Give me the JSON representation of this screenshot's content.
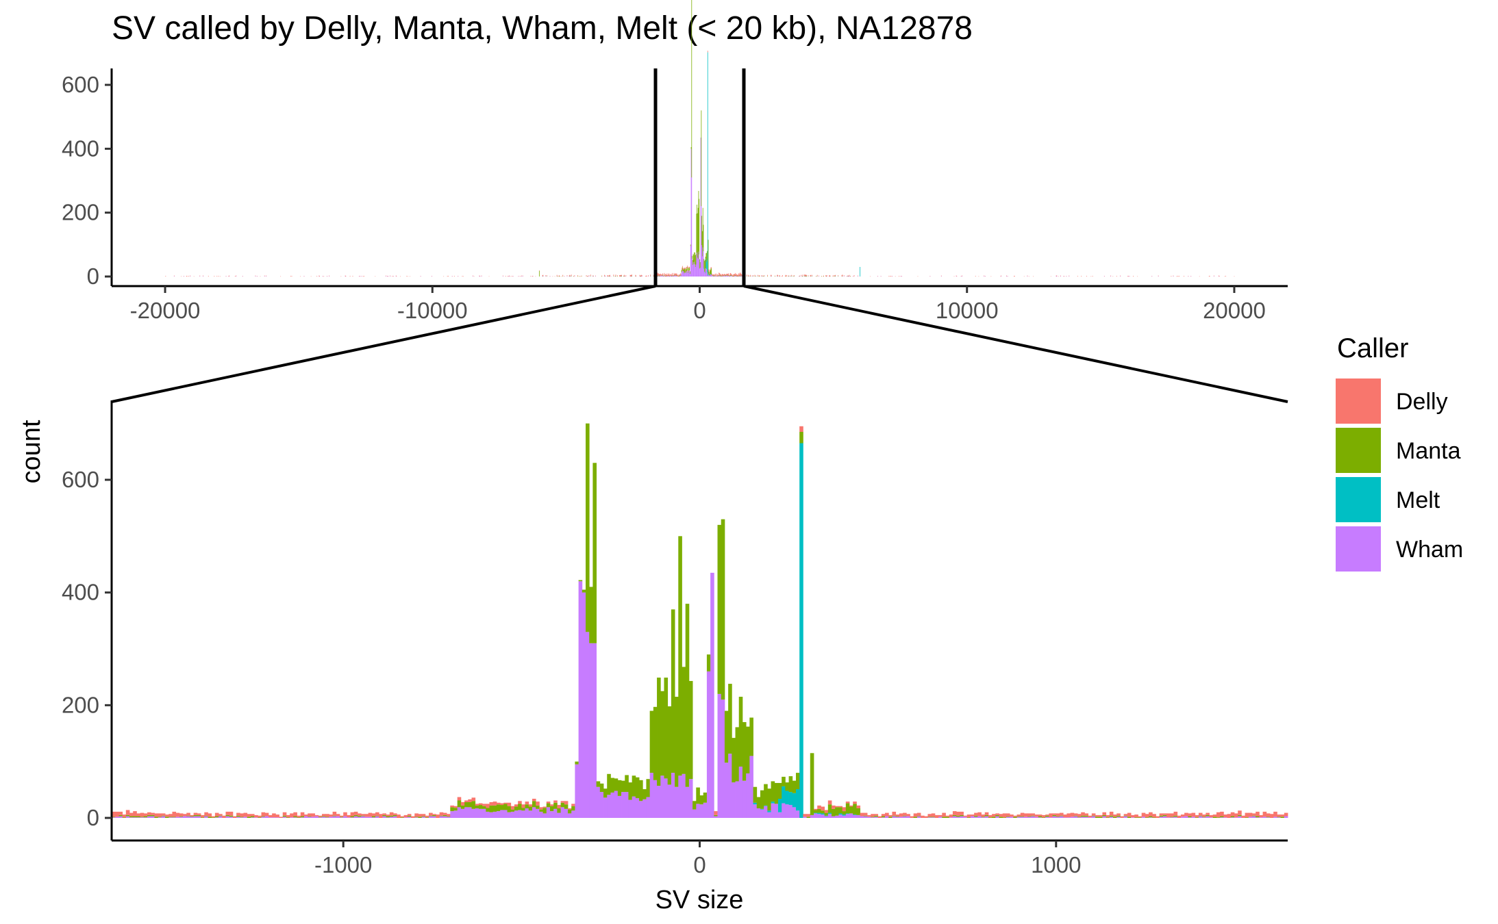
{
  "title": "SV called by Delly, Manta, Wham, Melt (< 20 kb), NA12878",
  "legend": {
    "title": "Caller",
    "items": [
      {
        "label": "Delly",
        "color": "#F8766D"
      },
      {
        "label": "Manta",
        "color": "#7CAE00"
      },
      {
        "label": "Melt",
        "color": "#00BFC4"
      },
      {
        "label": "Wham",
        "color": "#C77CFF"
      }
    ]
  },
  "chart_data": [
    {
      "type": "bar",
      "subtype": "stacked-histogram",
      "panel": "overview",
      "xlim": [
        -22000,
        22000
      ],
      "ylim": [
        0,
        720
      ],
      "xticks": [
        -20000,
        -10000,
        0,
        10000,
        20000
      ],
      "xtick_labels": [
        "-20000",
        "-10000",
        "0",
        "10000",
        "20000"
      ],
      "yticks": [
        0,
        200,
        400,
        600
      ],
      "ytick_labels": [
        "0",
        "200",
        "400",
        "600"
      ],
      "zoom_window": [
        -1650,
        1650
      ],
      "series_order": [
        "Wham",
        "Melt",
        "Manta",
        "Delly"
      ],
      "notable_spikes": [
        {
          "x": -6000,
          "Manta": 18
        },
        {
          "x": 6000,
          "Melt": 30
        },
        {
          "x": -300,
          "Manta": 690
        },
        {
          "x": 300,
          "Melt": 700
        }
      ],
      "grid": false,
      "legend_position": "right"
    },
    {
      "type": "bar",
      "subtype": "stacked-histogram",
      "panel": "zoom",
      "xlabel": "SV size",
      "ylabel": "count",
      "xlim": [
        -1650,
        1650
      ],
      "ylim": [
        -35,
        730
      ],
      "xticks": [
        -1000,
        0,
        1000
      ],
      "xtick_labels": [
        "-1000",
        "0",
        "1000"
      ],
      "yticks": [
        0,
        200,
        400,
        600
      ],
      "ytick_labels": [
        "0",
        "200",
        "400",
        "600"
      ],
      "series_order": [
        "Wham",
        "Melt",
        "Manta",
        "Delly"
      ],
      "bin_width": 10,
      "key_points": [
        {
          "x": -345,
          "Wham": 95,
          "Manta": 5,
          "Delly": 0
        },
        {
          "x": -335,
          "Wham": 420,
          "Manta": 2,
          "Delly": 0
        },
        {
          "x": -325,
          "Wham": 400,
          "Manta": 5,
          "Delly": 0
        },
        {
          "x": -315,
          "Wham": 330,
          "Manta": 370,
          "Delly": 0
        },
        {
          "x": -305,
          "Wham": 310,
          "Manta": 100,
          "Delly": 0
        },
        {
          "x": -295,
          "Wham": 310,
          "Manta": 320,
          "Delly": 0
        },
        {
          "x": -285,
          "Wham": 55,
          "Manta": 10,
          "Delly": 0
        },
        {
          "x": -135,
          "Wham": 80,
          "Manta": 110,
          "Delly": 0
        },
        {
          "x": -105,
          "Wham": 75,
          "Manta": 150,
          "Delly": 0
        },
        {
          "x": -75,
          "Wham": 80,
          "Manta": 290,
          "Delly": 0
        },
        {
          "x": -55,
          "Wham": 75,
          "Manta": 425,
          "Delly": 0
        },
        {
          "x": -35,
          "Wham": 55,
          "Manta": 325,
          "Delly": 0
        },
        {
          "x": -15,
          "Wham": 15,
          "Manta": 15,
          "Delly": 0
        },
        {
          "x": 25,
          "Wham": 260,
          "Manta": 30,
          "Delly": 0
        },
        {
          "x": 35,
          "Wham": 435,
          "Manta": 0,
          "Delly": 0
        },
        {
          "x": 55,
          "Wham": 220,
          "Manta": 300,
          "Delly": 0
        },
        {
          "x": 65,
          "Wham": 210,
          "Manta": 320,
          "Delly": 0
        },
        {
          "x": 285,
          "Melt": 665,
          "Manta": 20,
          "Delly": 10
        },
        {
          "x": 315,
          "Wham": 5,
          "Manta": 110,
          "Delly": 0
        }
      ],
      "grid": false,
      "legend_position": "right"
    }
  ]
}
